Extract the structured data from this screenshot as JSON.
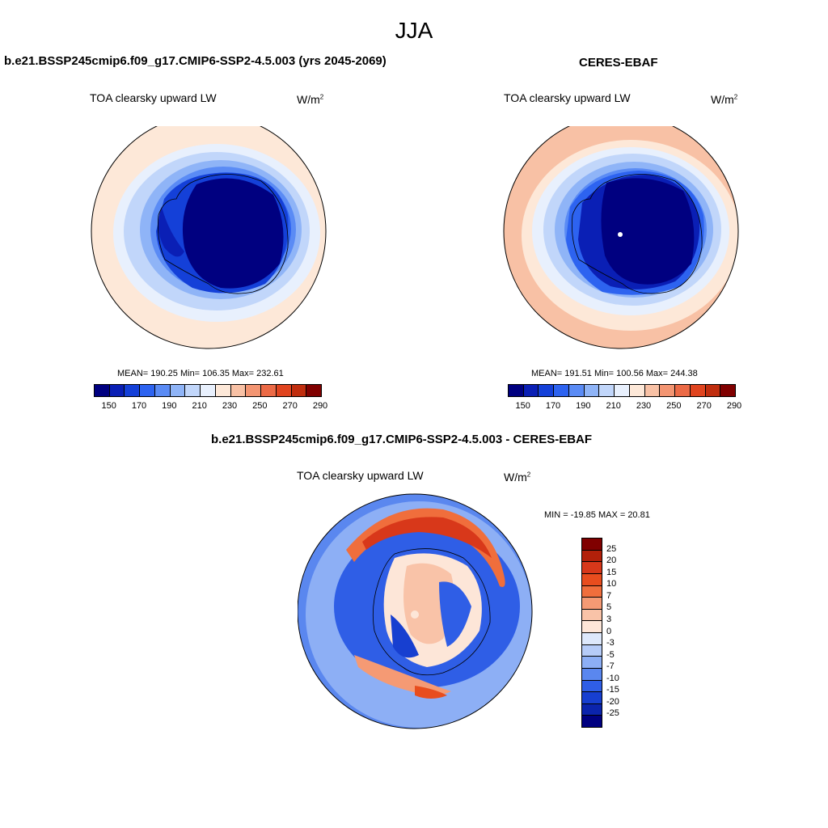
{
  "season": "JJA",
  "panels": [
    {
      "title": "b.e21.BSSP245cmip6.f09_g17.CMIP6-SSP2-4.5.003 (yrs 2045-2069)",
      "variable": "TOA clearsky upward LW",
      "units_base": "W/m",
      "units_sup": "2",
      "stats": "MEAN= 190.25  Min= 106.35  Max= 232.61"
    },
    {
      "title": "CERES-EBAF",
      "variable": "TOA clearsky upward LW",
      "units_base": "W/m",
      "units_sup": "2",
      "stats": "MEAN= 191.51  Min= 100.56  Max= 244.38"
    }
  ],
  "diff": {
    "title": "b.e21.BSSP245cmip6.f09_g17.CMIP6-SSP2-4.5.003 - CERES-EBAF",
    "variable": "TOA clearsky upward LW",
    "units_base": "W/m",
    "units_sup": "2",
    "minmax": "MIN = -19.85 MAX =  20.81"
  },
  "abs_colorbar": {
    "colors": [
      "#000080",
      "#0a1fb5",
      "#1440d8",
      "#2d63f0",
      "#5a8bf5",
      "#8fb4f7",
      "#c1d6fa",
      "#e8f0fd",
      "#fde8d8",
      "#f8c1a5",
      "#f39572",
      "#ec6a46",
      "#e0441f",
      "#c02d0e",
      "#800000"
    ],
    "tick_labels": [
      "150",
      "170",
      "190",
      "210",
      "230",
      "250",
      "270",
      "290"
    ]
  },
  "diff_colorbar": {
    "colors": [
      "#800000",
      "#b2200a",
      "#d8381a",
      "#e84d1e",
      "#f06e3c",
      "#f59a74",
      "#f9c3a8",
      "#fde6d8",
      "#dde8fb",
      "#b6ccf8",
      "#8dafF5",
      "#5a87ef",
      "#2f5ee6",
      "#173fd0",
      "#0b24ad",
      "#000080"
    ],
    "labels": [
      "25",
      "20",
      "15",
      "10",
      "7",
      "5",
      "3",
      "0",
      "-3",
      "-5",
      "-7",
      "-10",
      "-15",
      "-20",
      "-25"
    ]
  }
}
